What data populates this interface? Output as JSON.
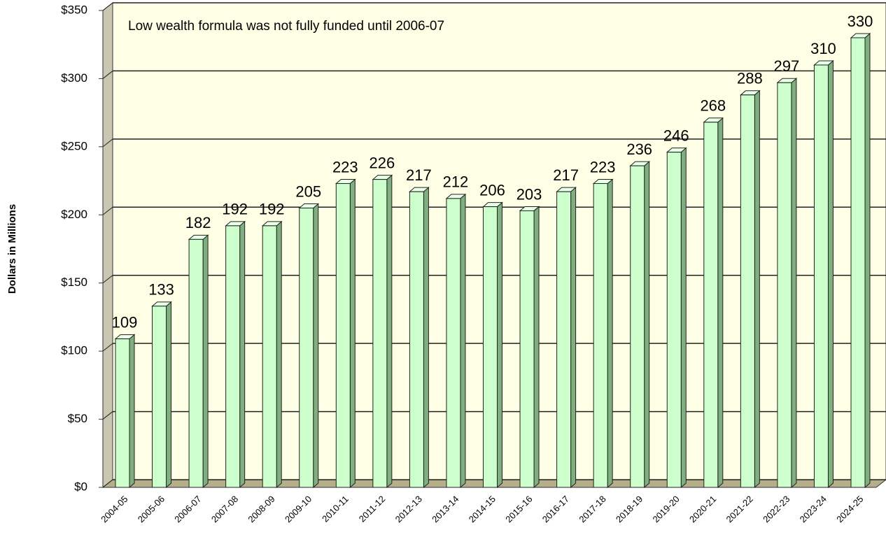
{
  "chart_data": {
    "type": "bar3d",
    "annotation": "Low wealth formula was not fully funded until 2006-07",
    "y_label": "Dollars in Millions",
    "categories": [
      "2004-05",
      "2005-06",
      "2006-07",
      "2007-08",
      "2008-09",
      "2009-10",
      "2010-11",
      "2011-12",
      "2012-13",
      "2013-14",
      "2014-15",
      "2015-16",
      "2016-17",
      "2017-18",
      "2018-19",
      "2019-20",
      "2020-21",
      "2021-22",
      "2022-23",
      "2023-24",
      "2024-25"
    ],
    "values": [
      109,
      133,
      182,
      192,
      192,
      205,
      223,
      226,
      217,
      212,
      206,
      203,
      217,
      223,
      236,
      246,
      268,
      288,
      297,
      310,
      330
    ],
    "color": "#ccffcc",
    "ylim": [
      0,
      350
    ],
    "yticks": [
      {
        "value": 0,
        "label": "$0"
      },
      {
        "value": 50,
        "label": "$50"
      },
      {
        "value": 100,
        "label": "$100"
      },
      {
        "value": 150,
        "label": "$150"
      },
      {
        "value": 200,
        "label": "$200"
      },
      {
        "value": 250,
        "label": "$250"
      },
      {
        "value": 300,
        "label": "$300"
      },
      {
        "value": 350,
        "label": "$350"
      }
    ],
    "grid": true
  }
}
